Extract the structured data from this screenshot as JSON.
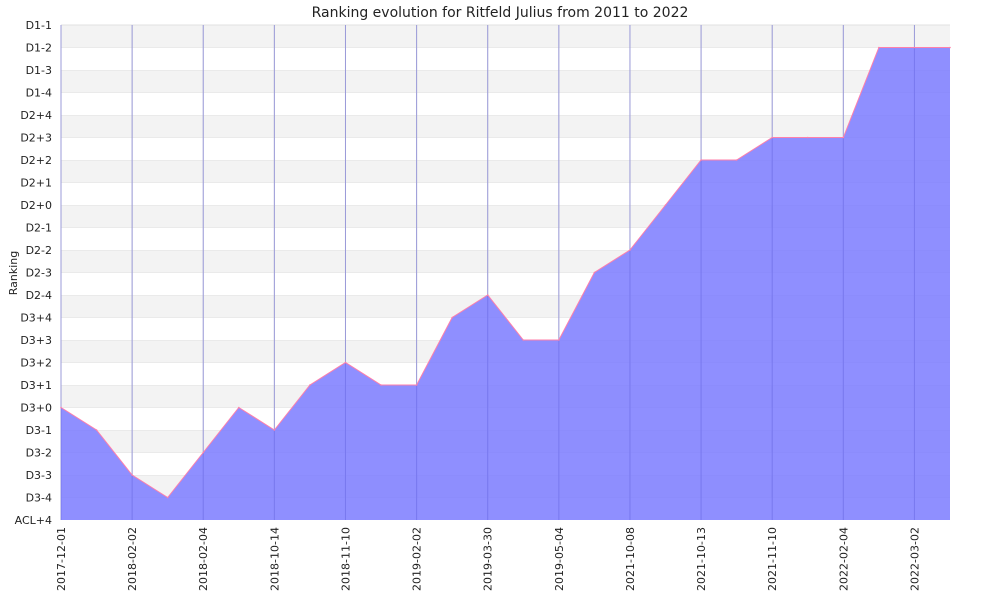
{
  "chart_data": {
    "type": "area",
    "title": "Ranking evolution for Ritfeld Julius from 2011 to 2022",
    "xlabel": "",
    "ylabel": "Ranking",
    "y_categories": [
      "ACL+4",
      "D3-4",
      "D3-3",
      "D3-2",
      "D3-1",
      "D3+0",
      "D3+1",
      "D3+2",
      "D3+3",
      "D3+4",
      "D2-4",
      "D2-3",
      "D2-2",
      "D2-1",
      "D2+0",
      "D2+1",
      "D2+2",
      "D2+3",
      "D2+4",
      "D1-4",
      "D1-3",
      "D1-2",
      "D1-1"
    ],
    "x_tick_labels": [
      "2017-12-01",
      "2018-02-02",
      "2018-02-04",
      "2018-10-14",
      "2018-11-10",
      "2019-02-02",
      "2019-03-30",
      "2019-05-04",
      "2021-10-08",
      "2021-10-13",
      "2021-11-10",
      "2022-02-04",
      "2022-03-02"
    ],
    "series": [
      {
        "values": [
          "D3+0",
          "D3-1",
          "D3-3",
          "D3-4",
          "D3-2",
          "D3+0",
          "D3-1",
          "D3+1",
          "D3+2",
          "D3+1",
          "D3+1",
          "D3+4",
          "D2-4",
          "D3+3",
          "D3+3",
          "D2-3",
          "D2-2",
          "D2+0",
          "D2+2",
          "D2+2",
          "D2+3",
          "D2+3",
          "D2+3",
          "D1-2",
          "D1-2",
          "D1-2"
        ]
      }
    ],
    "grid": true,
    "colors": {
      "fill": "#7b7bff",
      "line": "#ff7faa",
      "band_light": "#f3f3f3",
      "band_white": "#ffffff",
      "gridline": "#cccccc"
    }
  }
}
